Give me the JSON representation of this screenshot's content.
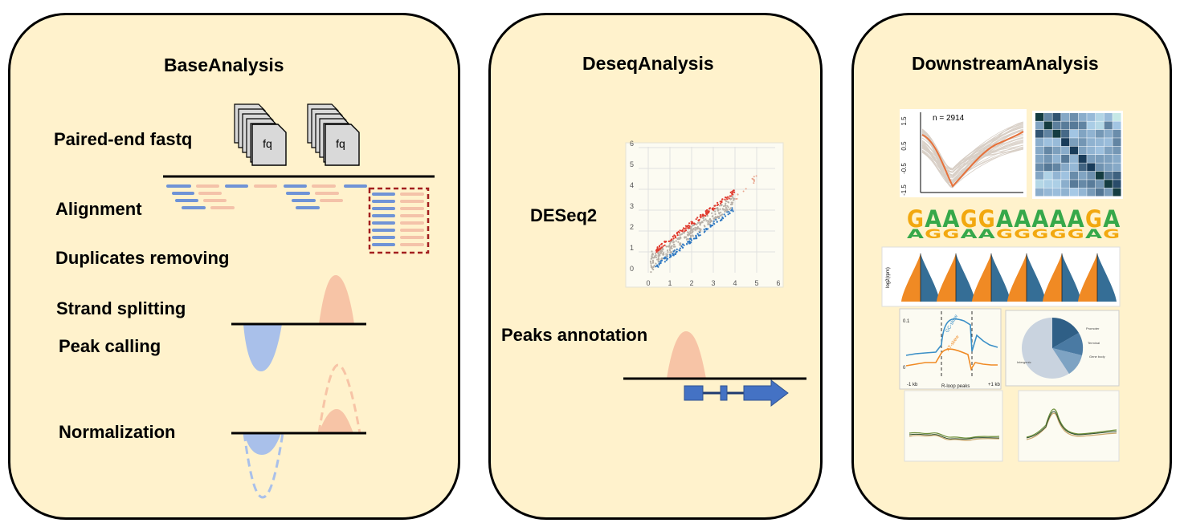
{
  "panels": {
    "base": {
      "title": "BaseAnalysis",
      "steps": [
        "Paired-end fastq",
        "Alignment",
        "Duplicates removing",
        "Strand splitting",
        "Peak calling",
        "Normalization"
      ],
      "file_label": "fq"
    },
    "deseq": {
      "title": "DeseqAnalysis",
      "steps": [
        "DESeq2",
        "Peaks annotation"
      ],
      "scatter": {
        "x_ticks": [
          "0",
          "1",
          "2",
          "3",
          "4",
          "5",
          "6"
        ],
        "y_ticks": [
          "0",
          "1",
          "2",
          "3",
          "4",
          "5",
          "6"
        ]
      }
    },
    "downstream": {
      "title": "DownstreamAnalysis",
      "cluster_label": "n = 2914",
      "cluster_y_ticks": [
        "1.5",
        "0.5",
        "-0.5",
        "-1.5"
      ],
      "motif": [
        "G",
        "A",
        "A",
        "G",
        "G",
        "A",
        "A",
        "A",
        "A",
        "A",
        "G",
        "A"
      ],
      "violin_ylabel": "log2(rpm)",
      "profile_series": [
        "GC-skew",
        "AT-skew"
      ],
      "profile_x": [
        "-1 kb",
        "R-loop peaks",
        "+1 kb"
      ],
      "profile_y": [
        "0.1",
        "0"
      ],
      "pie_labels": [
        "Promoter",
        "Terminal",
        "Gene body",
        "Intergenic"
      ]
    }
  },
  "colors": {
    "panel_bg": "#fff2cc",
    "blue_read": "#6f93d6",
    "pink_read": "#f4c2a9",
    "peak_pink": "#f7c4a6",
    "peak_blue": "#a9c0ea",
    "gene_blue": "#4472c4",
    "dup_box": "#a31f1f",
    "scatter_red": "#e03a2e",
    "scatter_blue": "#2f78c1",
    "heat_dark": "#1d4e7a",
    "orange": "#f08a24"
  }
}
